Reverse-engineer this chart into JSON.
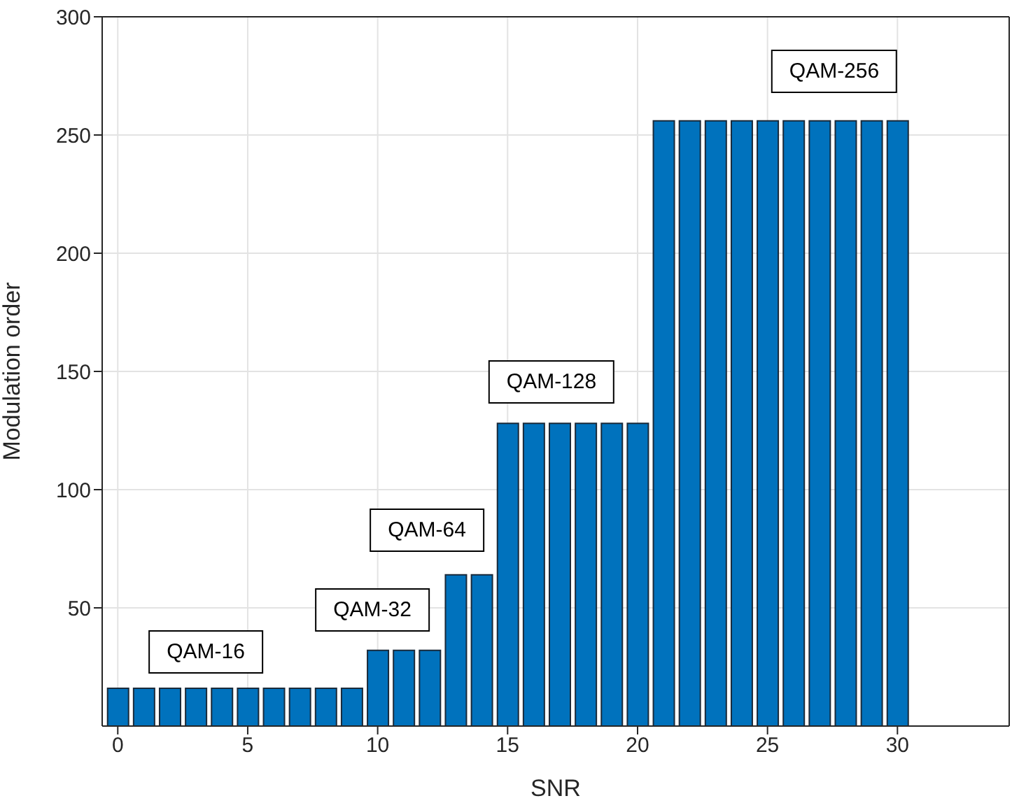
{
  "chart_data": {
    "type": "bar",
    "xlabel": "SNR",
    "ylabel": "Modulation order",
    "x": [
      0,
      1,
      2,
      3,
      4,
      5,
      6,
      7,
      8,
      9,
      10,
      11,
      12,
      13,
      14,
      15,
      16,
      17,
      18,
      19,
      20,
      21,
      22,
      23,
      24,
      25,
      26,
      27,
      28,
      29,
      30
    ],
    "values": [
      16,
      16,
      16,
      16,
      16,
      16,
      16,
      16,
      16,
      16,
      32,
      32,
      32,
      64,
      64,
      128,
      128,
      128,
      128,
      128,
      128,
      256,
      256,
      256,
      256,
      256,
      256,
      256,
      256,
      256,
      256
    ],
    "color": "#0072bd",
    "xlim": [
      -0.6,
      34.3
    ],
    "xticks": [
      0,
      5,
      10,
      15,
      20,
      25,
      30
    ],
    "ylim": [
      0,
      300
    ],
    "yticks": [
      50,
      100,
      150,
      200,
      250,
      300
    ],
    "grid": true,
    "annotations": [
      "QAM-16",
      "QAM-32",
      "QAM-64",
      "QAM-128",
      "QAM-256"
    ]
  }
}
